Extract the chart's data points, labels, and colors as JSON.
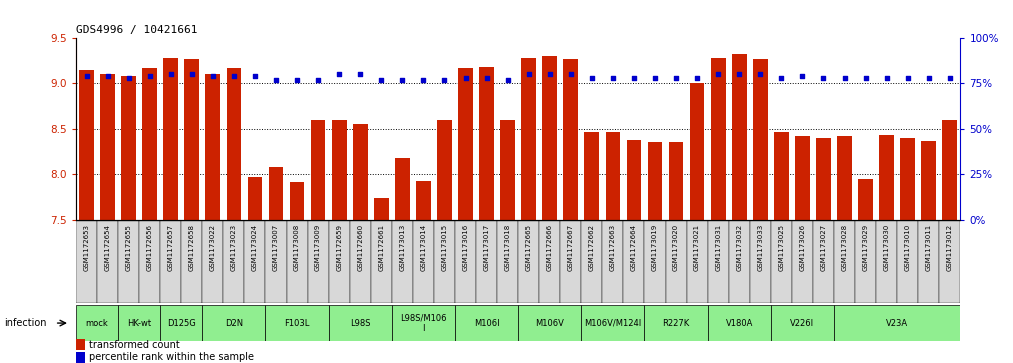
{
  "title": "GDS4996 / 10421661",
  "samples": [
    "GSM1172653",
    "GSM1172654",
    "GSM1172655",
    "GSM1172656",
    "GSM1172657",
    "GSM1172658",
    "GSM1173022",
    "GSM1173023",
    "GSM1173024",
    "GSM1173007",
    "GSM1173008",
    "GSM1173009",
    "GSM1172659",
    "GSM1172660",
    "GSM1172661",
    "GSM1173013",
    "GSM1173014",
    "GSM1173015",
    "GSM1173016",
    "GSM1173017",
    "GSM1173018",
    "GSM1172665",
    "GSM1172666",
    "GSM1172667",
    "GSM1172662",
    "GSM1172663",
    "GSM1172664",
    "GSM1173019",
    "GSM1173020",
    "GSM1173021",
    "GSM1173031",
    "GSM1173032",
    "GSM1173033",
    "GSM1173025",
    "GSM1173026",
    "GSM1173027",
    "GSM1173028",
    "GSM1173029",
    "GSM1173030",
    "GSM1173010",
    "GSM1173011",
    "GSM1173012"
  ],
  "red_values": [
    9.15,
    9.1,
    9.08,
    9.17,
    9.28,
    9.27,
    9.1,
    9.17,
    7.97,
    8.08,
    7.92,
    8.6,
    8.6,
    8.55,
    7.74,
    8.18,
    7.93,
    8.6,
    9.17,
    9.18,
    8.6,
    9.28,
    9.3,
    9.27,
    8.47,
    8.47,
    8.38,
    8.35,
    8.35,
    9.0,
    9.28,
    9.33,
    9.27,
    8.47,
    8.42,
    8.4,
    8.42,
    7.95,
    8.43,
    8.4,
    8.37,
    8.6
  ],
  "blue_values": [
    79,
    79,
    78,
    79,
    80,
    80,
    79,
    79,
    79,
    77,
    77,
    77,
    80,
    80,
    77,
    77,
    77,
    77,
    78,
    78,
    77,
    80,
    80,
    80,
    78,
    78,
    78,
    78,
    78,
    78,
    80,
    80,
    80,
    78,
    79,
    78,
    78,
    78,
    78,
    78,
    78,
    78
  ],
  "group_defs": [
    {
      "label": "mock",
      "start": 0,
      "end": 2,
      "color": "#90ee90"
    },
    {
      "label": "HK-wt",
      "start": 2,
      "end": 4,
      "color": "#90ee90"
    },
    {
      "label": "D125G",
      "start": 4,
      "end": 6,
      "color": "#90ee90"
    },
    {
      "label": "D2N",
      "start": 6,
      "end": 9,
      "color": "#90ee90"
    },
    {
      "label": "F103L",
      "start": 9,
      "end": 12,
      "color": "#90ee90"
    },
    {
      "label": "L98S",
      "start": 12,
      "end": 15,
      "color": "#90ee90"
    },
    {
      "label": "L98S/M106\nI",
      "start": 15,
      "end": 18,
      "color": "#90ee90"
    },
    {
      "label": "M106I",
      "start": 18,
      "end": 21,
      "color": "#90ee90"
    },
    {
      "label": "M106V",
      "start": 21,
      "end": 24,
      "color": "#90ee90"
    },
    {
      "label": "M106V/M124I",
      "start": 24,
      "end": 27,
      "color": "#90ee90"
    },
    {
      "label": "R227K",
      "start": 27,
      "end": 30,
      "color": "#90ee90"
    },
    {
      "label": "V180A",
      "start": 30,
      "end": 33,
      "color": "#90ee90"
    },
    {
      "label": "V226I",
      "start": 33,
      "end": 36,
      "color": "#90ee90"
    },
    {
      "label": "V23A",
      "start": 36,
      "end": 42,
      "color": "#90ee90"
    }
  ],
  "ylim_left": [
    7.5,
    9.5
  ],
  "ylim_right": [
    0,
    100
  ],
  "yticks_left": [
    7.5,
    8.0,
    8.5,
    9.0,
    9.5
  ],
  "yticks_right": [
    0,
    25,
    50,
    75,
    100
  ],
  "bar_color": "#cc2200",
  "dot_color": "#0000cc",
  "infection_label": "infection",
  "legend_transformed": "transformed count",
  "legend_percentile": "percentile rank within the sample",
  "group_color": "#90ee90",
  "sample_label_bg": "#d0d0d0"
}
